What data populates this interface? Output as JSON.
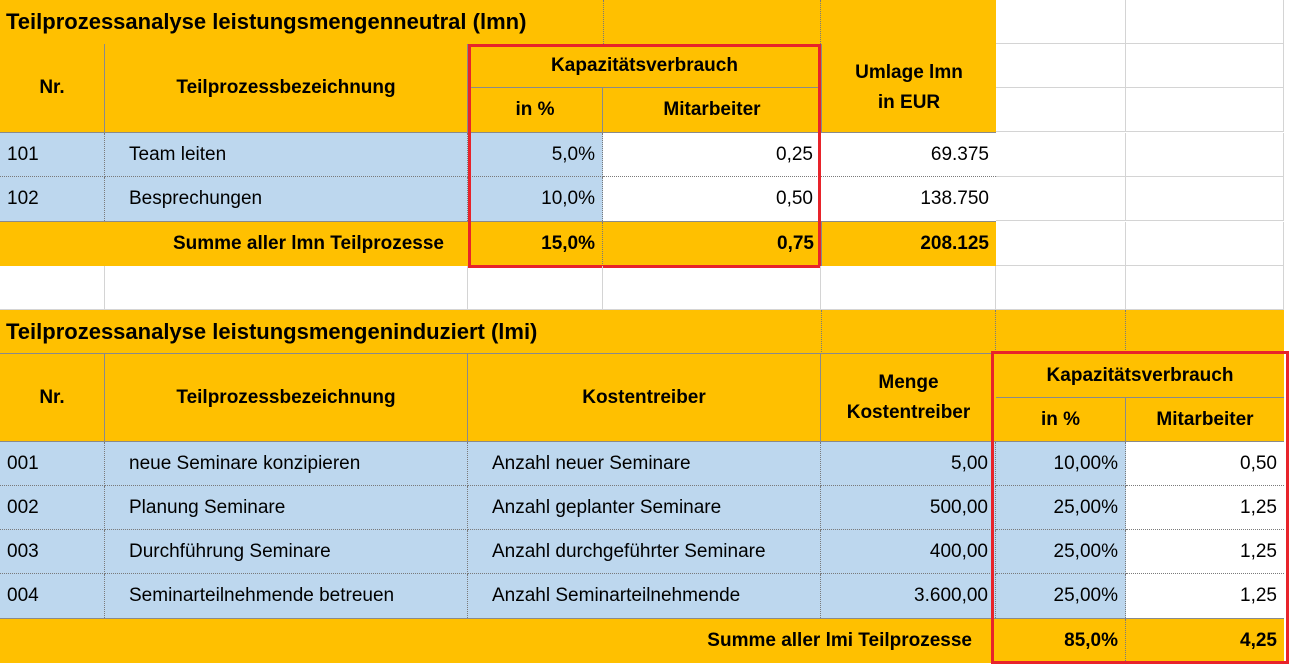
{
  "lmn": {
    "title": "Teilprozessanalyse leistungsmengenneutral (lmn)",
    "headers": {
      "nr": "Nr.",
      "bezeichnung": "Teilprozessbezeichnung",
      "kapazitaet": "Kapazitätsverbrauch",
      "in_prozent": "in %",
      "mitarbeiter": "Mitarbeiter",
      "umlage_line1": "Umlage lmn",
      "umlage_line2": "in EUR"
    },
    "rows": [
      {
        "nr": "101",
        "bezeichnung": "Team leiten",
        "prozent": "5,0%",
        "mitarbeiter": "0,25",
        "umlage": "69.375"
      },
      {
        "nr": "102",
        "bezeichnung": "Besprechungen",
        "prozent": "10,0%",
        "mitarbeiter": "0,50",
        "umlage": "138.750"
      }
    ],
    "summe": {
      "label": "Summe aller lmn Teilprozesse",
      "prozent": "15,0%",
      "mitarbeiter": "0,75",
      "umlage": "208.125"
    }
  },
  "lmi": {
    "title": "Teilprozessanalyse leistungsmengeninduziert (lmi)",
    "headers": {
      "nr": "Nr.",
      "bezeichnung": "Teilprozessbezeichnung",
      "kostentreiber": "Kostentreiber",
      "menge_line1": "Menge",
      "menge_line2": "Kostentreiber",
      "kapazitaet": "Kapazitätsverbrauch",
      "in_prozent": "in %",
      "mitarbeiter": "Mitarbeiter"
    },
    "rows": [
      {
        "nr": "001",
        "bezeichnung": "neue Seminare konzipieren",
        "kostentreiber": "Anzahl neuer Seminare",
        "menge": "5,00",
        "prozent": "10,00%",
        "mitarbeiter": "0,50"
      },
      {
        "nr": "002",
        "bezeichnung": "Planung Seminare",
        "kostentreiber": "Anzahl geplanter Seminare",
        "menge": "500,00",
        "prozent": "25,00%",
        "mitarbeiter": "1,25"
      },
      {
        "nr": "003",
        "bezeichnung": "Durchführung Seminare",
        "kostentreiber": "Anzahl durchgeführter Seminare",
        "menge": "400,00",
        "prozent": "25,00%",
        "mitarbeiter": "1,25"
      },
      {
        "nr": "004",
        "bezeichnung": "Seminarteilnehmende betreuen",
        "kostentreiber": "Anzahl Seminarteilnehmende",
        "menge": "3.600,00",
        "prozent": "25,00%",
        "mitarbeiter": "1,25"
      }
    ],
    "summe": {
      "label": "Summe aller lmi Teilprozesse",
      "prozent": "85,0%",
      "mitarbeiter": "4,25"
    }
  },
  "colors": {
    "header_yellow": "#ffc000",
    "row_blue": "#bdd7ee",
    "highlight_red": "#e8232a"
  }
}
